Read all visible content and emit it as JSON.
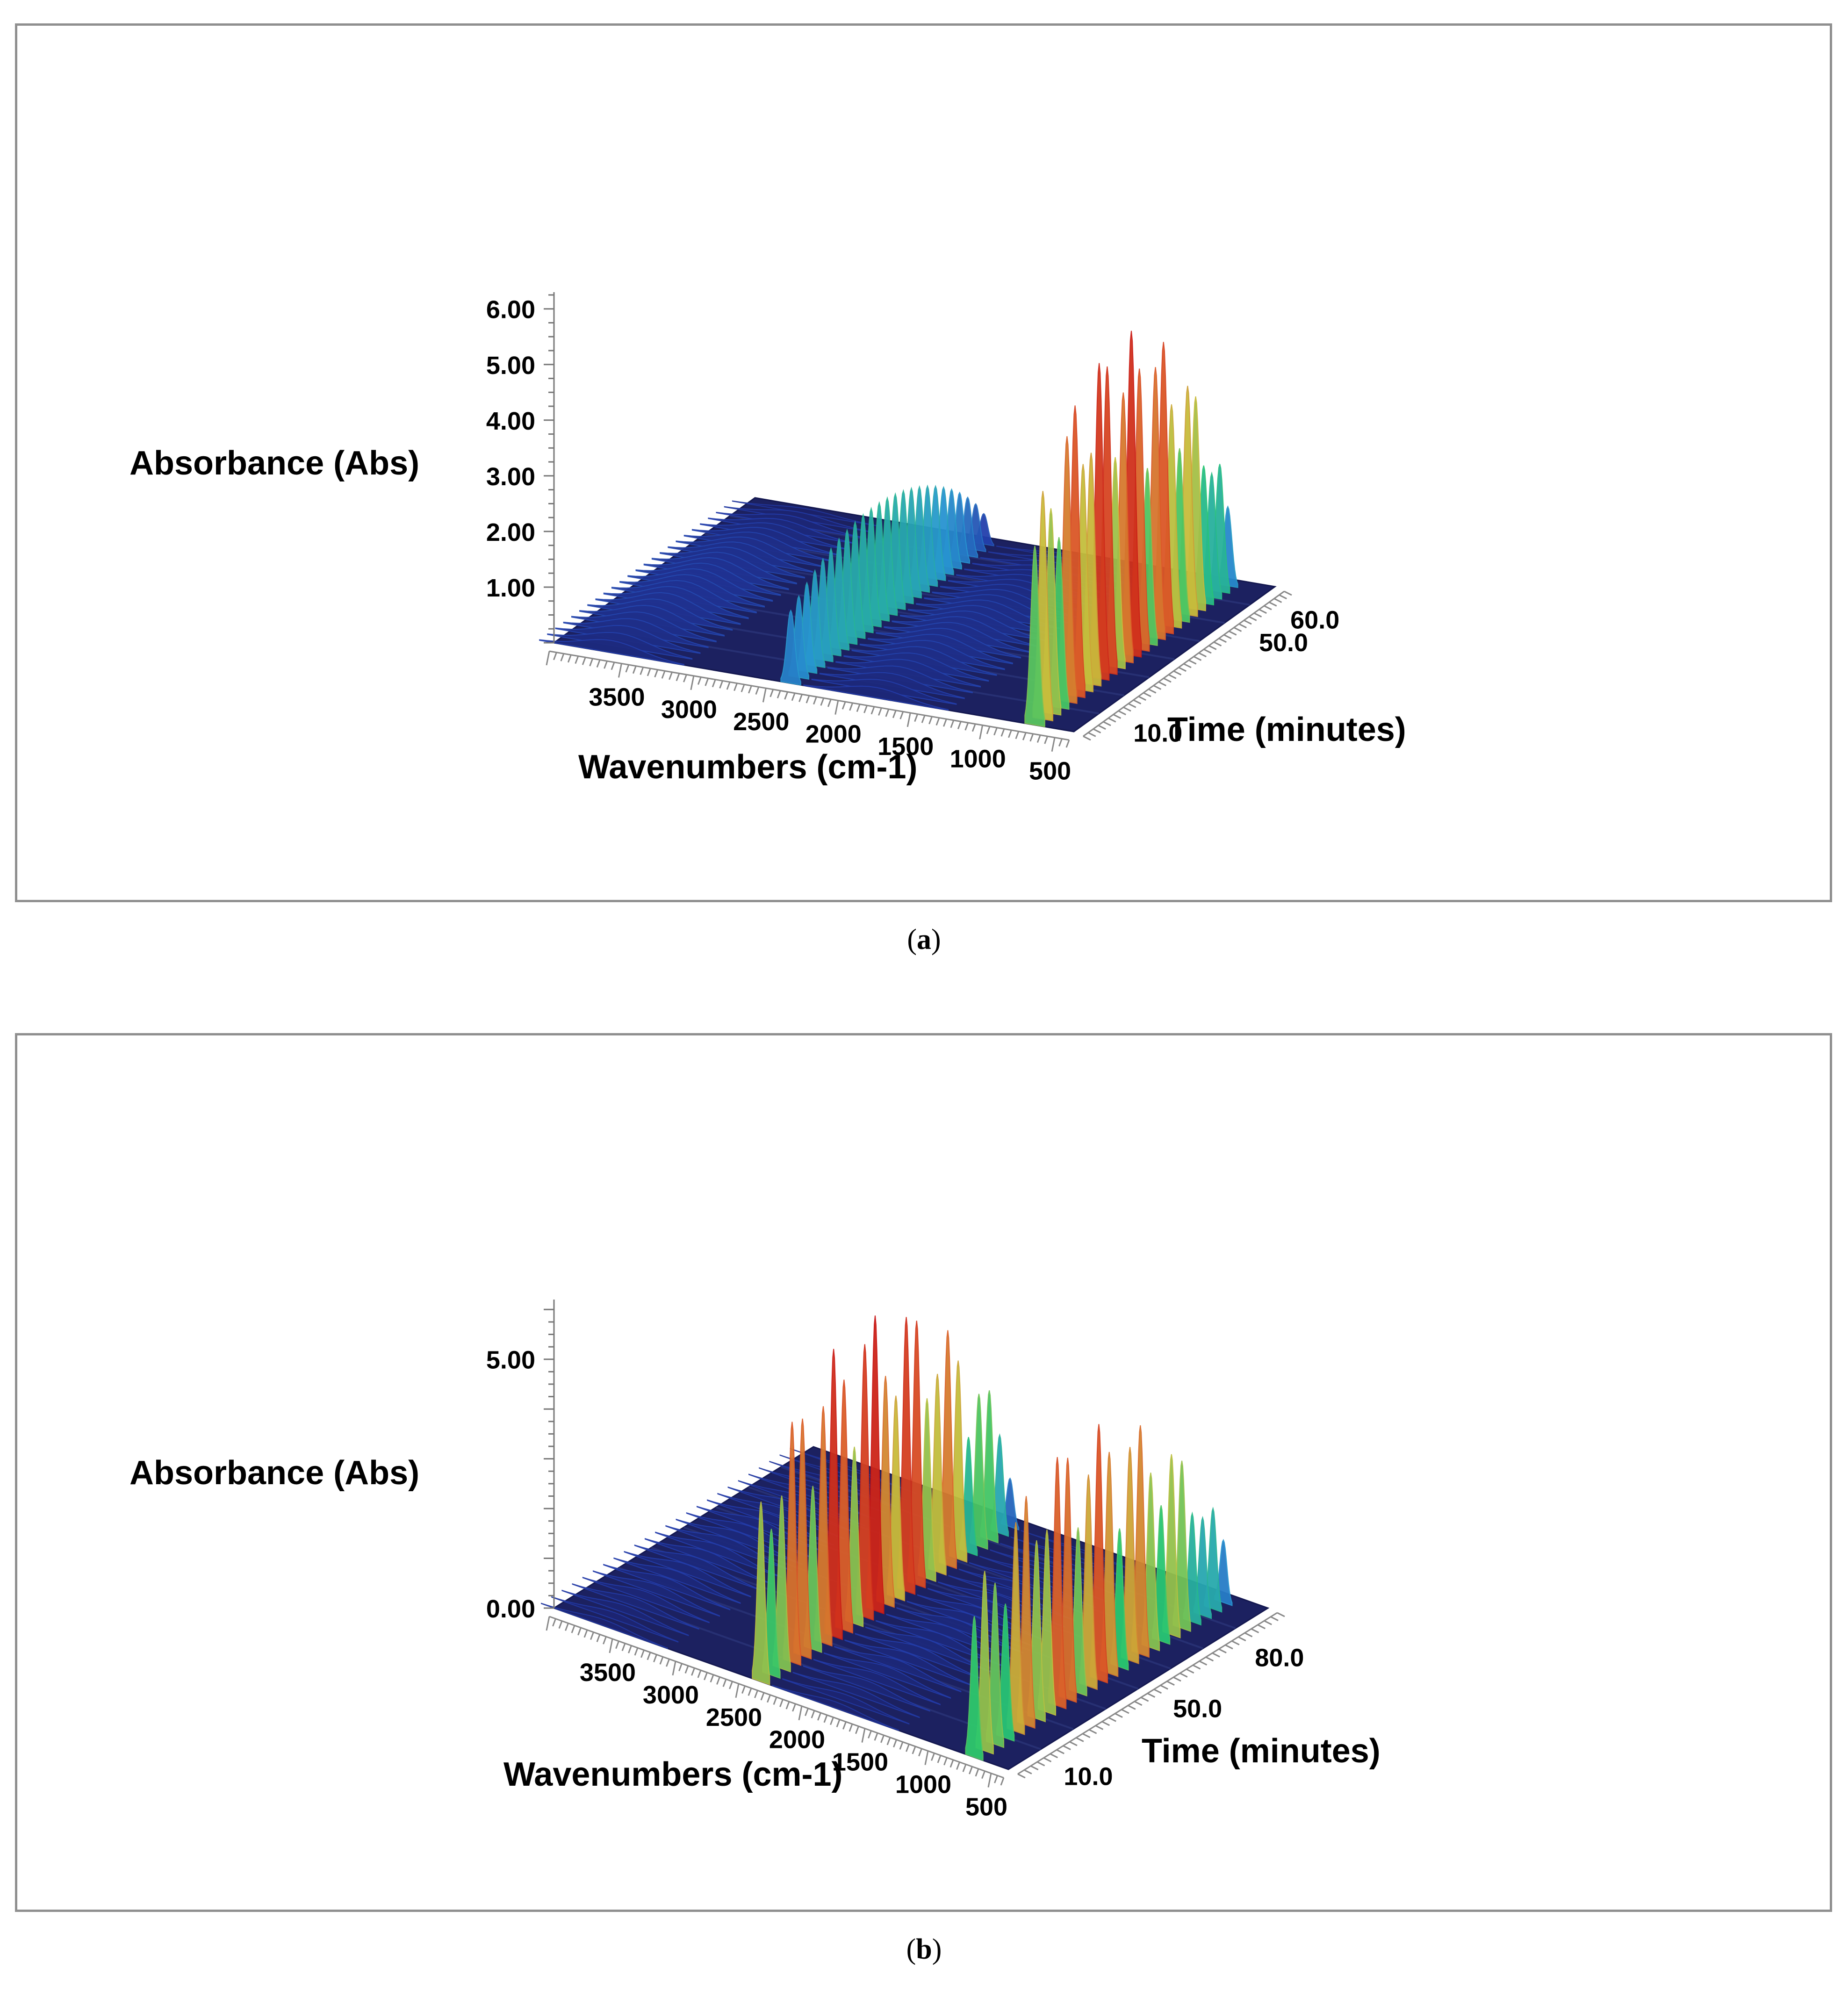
{
  "chart_data": [
    {
      "panel": "a",
      "type": "surface3d",
      "caption_letter": "a",
      "xlabel": "Wavenumbers (cm-1)",
      "ylabel": "Absorbance (Abs)",
      "zlabel": "Time (minutes)",
      "x_ticks": [
        "3500",
        "3000",
        "2500",
        "2000",
        "1500",
        "1000",
        "500"
      ],
      "y_ticks": [
        "1.00",
        "2.00",
        "3.00",
        "4.00",
        "5.00",
        "6.00"
      ],
      "z_ticks": [
        "10.0",
        "50.0",
        "60.0"
      ],
      "xlim": [
        4000,
        400
      ],
      "ylim": [
        0,
        6.3
      ],
      "zlim": [
        0,
        64
      ],
      "peaks": [
        {
          "wavenumber": 3600,
          "max_absorbance": 0.35
        },
        {
          "wavenumber": 2360,
          "max_absorbance": 2.1
        },
        {
          "wavenumber": 1770,
          "max_absorbance": 0.3
        },
        {
          "wavenumber": 670,
          "max_absorbance": 5.9
        }
      ]
    },
    {
      "panel": "b",
      "type": "surface3d",
      "caption_letter": "b",
      "xlabel": "Wavenumbers (cm-1)",
      "ylabel": "Absorbance (Abs)",
      "zlabel": "Time (minutes)",
      "x_ticks": [
        "3500",
        "3000",
        "2500",
        "2000",
        "1500",
        "1000",
        "500"
      ],
      "y_ticks": [
        "0.00",
        "5.00"
      ],
      "z_ticks": [
        "10.0",
        "50.0",
        "80.0"
      ],
      "xlim": [
        4000,
        400
      ],
      "ylim": [
        0,
        6.2
      ],
      "zlim": [
        0,
        95
      ],
      "peaks": [
        {
          "wavenumber": 3600,
          "max_absorbance": 0.2
        },
        {
          "wavenumber": 2360,
          "max_absorbance": 6.0
        },
        {
          "wavenumber": 1770,
          "max_absorbance": 0.2
        },
        {
          "wavenumber": 670,
          "max_absorbance": 5.2
        }
      ]
    }
  ],
  "captions": {
    "a": {
      "open": "(",
      "letter": "a",
      "close": ")"
    },
    "b": {
      "open": "(",
      "letter": "b",
      "close": ")"
    }
  }
}
